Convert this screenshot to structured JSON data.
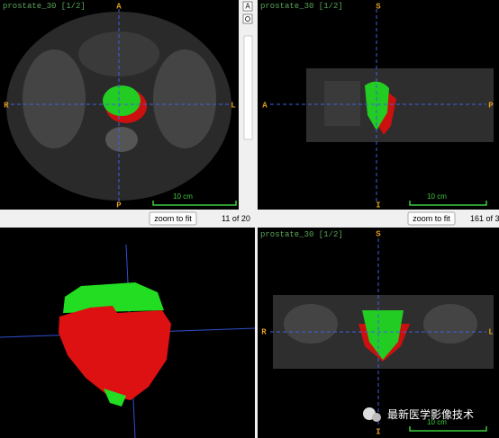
{
  "views": [
    {
      "title": "prostate_30 [1/2]",
      "labels": {
        "top": "A",
        "bottom": "P",
        "left": "R",
        "right": "L"
      },
      "scale": "10 cm"
    },
    {
      "title": "prostate_30 [1/2]",
      "labels": {
        "top": "S",
        "bottom": "I",
        "left": "A",
        "right": "P"
      },
      "scale": "10 cm"
    },
    {
      "title": "prostate_30 [1/2]",
      "labels": {
        "top": "S",
        "bottom": "I",
        "left": "R",
        "right": "L"
      },
      "scale": "10 cm"
    }
  ],
  "controls": [
    {
      "button": "zoom to fit",
      "slice": "11 of 20"
    },
    {
      "button": "zoom to fit",
      "slice": "161 of 3"
    }
  ],
  "scrollbar": {
    "button": "A"
  },
  "watermark": "最新医学影像技术"
}
